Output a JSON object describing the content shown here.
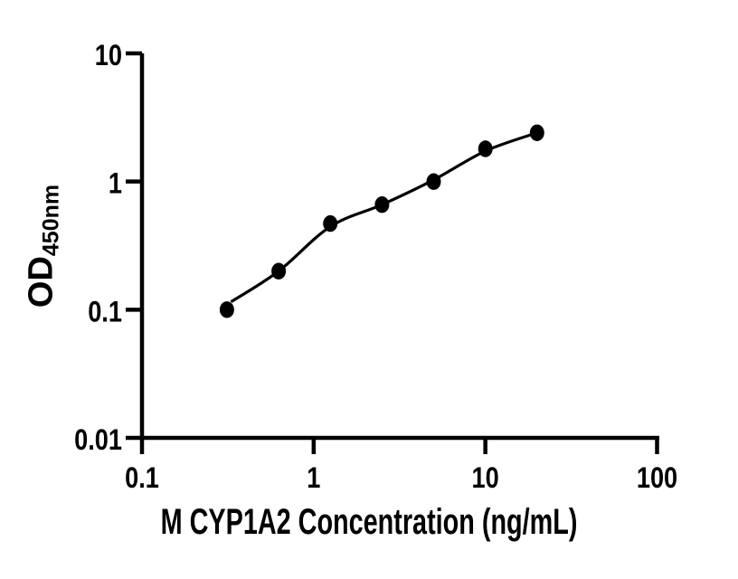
{
  "colors": {
    "foreground": "#000000",
    "background": "#ffffff"
  },
  "chart_data": {
    "type": "scatter",
    "title": "",
    "xlabel": "M CYP1A2 Concentration (ng/mL)",
    "ylabel_main": "OD",
    "ylabel_sub": "450nm",
    "x_scale": "log",
    "y_scale": "log",
    "xlim": [
      0.1,
      100
    ],
    "ylim": [
      0.01,
      10
    ],
    "x_ticks": {
      "values": [
        0.1,
        1,
        10,
        100
      ],
      "labels": [
        "0.1",
        "1",
        "10",
        "100"
      ]
    },
    "y_ticks": {
      "values": [
        0.01,
        0.1,
        1,
        10
      ],
      "labels": [
        "0.01",
        "0.1",
        "1",
        "10"
      ]
    },
    "grid": false,
    "legend": "none",
    "series": [
      {
        "name": "standard-curve-points",
        "marker": "filled-circle",
        "color": "#000000",
        "x": [
          0.3125,
          0.625,
          1.25,
          2.5,
          5,
          10,
          20
        ],
        "y": [
          0.1,
          0.2,
          0.47,
          0.66,
          1.0,
          1.8,
          2.4
        ]
      }
    ],
    "fit_curve": {
      "color": "#000000",
      "points": [
        [
          0.33,
          0.115
        ],
        [
          0.625,
          0.2
        ],
        [
          1.25,
          0.445
        ],
        [
          2.5,
          0.66
        ],
        [
          5,
          1.03
        ],
        [
          10,
          1.73
        ],
        [
          20,
          2.4
        ]
      ]
    }
  }
}
